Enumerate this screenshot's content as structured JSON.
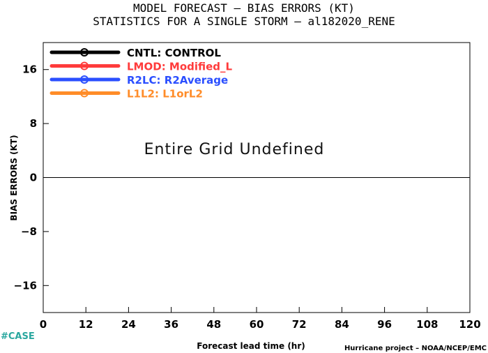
{
  "header": {
    "title_line1": "MODEL FORECAST – BIAS ERRORS (KT)",
    "title_line2": "STATISTICS FOR A SINGLE STORM – al182020_RENE"
  },
  "chart_data": {
    "type": "line",
    "xlabel": "Forecast lead time (hr)",
    "ylabel": "BIAS ERRORS (KT)",
    "xlim": [
      0,
      120
    ],
    "ylim": [
      -20,
      20
    ],
    "xticks": [
      0,
      12,
      24,
      36,
      48,
      60,
      72,
      84,
      96,
      108,
      120
    ],
    "yticks": [
      -16,
      -8,
      0,
      8,
      16
    ],
    "zero_line": true,
    "grid": false,
    "legend_position": "top-left",
    "annotation": "Entire Grid Undefined",
    "series": [
      {
        "name": "CNTL: CONTROL",
        "color": "#000000",
        "values": []
      },
      {
        "name": "LMOD: Modified_L",
        "color": "#ff3b3b",
        "values": []
      },
      {
        "name": "R2LC: R2Average",
        "color": "#2b4fff",
        "values": []
      },
      {
        "name": "L1L2: L1orL2",
        "color": "#ff8c28",
        "values": []
      }
    ]
  },
  "footer": {
    "tag": "#CASE",
    "credit": "Hurricane project – NOAA/NCEP/EMC"
  }
}
